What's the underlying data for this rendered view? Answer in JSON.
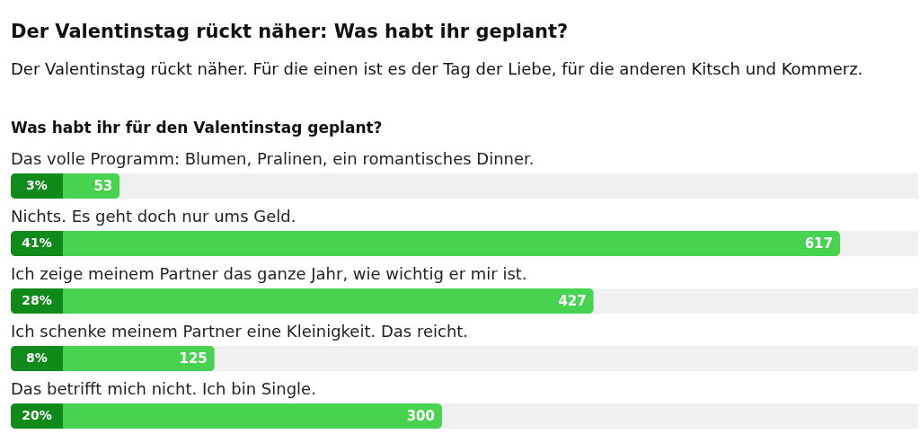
{
  "chart_data": {
    "type": "bar",
    "orientation": "horizontal",
    "title": "Der Valentinstag rückt näher: Was habt ihr geplant?",
    "subtitle": "Der Valentinstag rückt näher. Für die einen ist es der Tag der Liebe, für die anderen Kitsch und Kommerz.",
    "categories": [
      "Das volle Programm: Blumen, Pralinen, ein romantisches Dinner.",
      "Nichts. Es geht doch nur ums Geld.",
      "Ich zeige meinem Partner das ganze Jahr, wie wichtig er mir ist.",
      "Ich schenke meinem Partner eine Kleinigkeit. Das reicht.",
      "Das betrifft mich nicht. Ich bin Single."
    ],
    "values": [
      3,
      41,
      28,
      8,
      20
    ],
    "value_labels": [
      "3%",
      "41%",
      "28%",
      "8%",
      "20%"
    ],
    "color": "#47d24f",
    "annotations": [
      "Was habt ihr für den Valentinstag geplant?",
      {
        "text": "53",
        "x": 3,
        "y": "Das volle Programm: Blumen, Pralinen, ein romantisches Dinner."
      },
      {
        "text": "617",
        "x": 41,
        "y": "Nichts. Es geht doch nur ums Geld."
      },
      {
        "text": "427",
        "x": 28,
        "y": "Ich zeige meinem Partner das ganze Jahr, wie wichtig er mir ist."
      },
      {
        "text": "125",
        "x": 8,
        "y": "Ich schenke meinem Partner eine Kleinigkeit. Das reicht."
      },
      {
        "text": "300",
        "x": 20,
        "y": "Das betrifft mich nicht. Ich bin Single."
      }
    ]
  }
}
